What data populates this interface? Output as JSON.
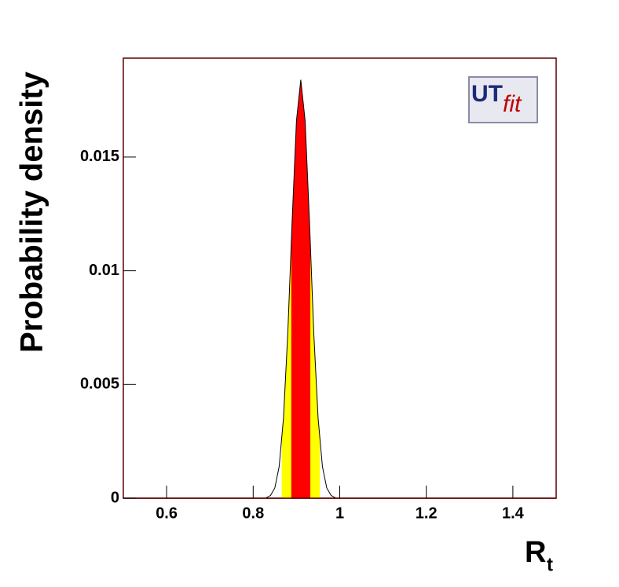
{
  "chart_data": {
    "type": "line",
    "ylabel": "Probability density",
    "xlabel": "R",
    "xlabel_subscript": "t",
    "logo": {
      "main": "UT",
      "sub": "fit"
    },
    "x": [
      0.83,
      0.84,
      0.85,
      0.86,
      0.87,
      0.88,
      0.89,
      0.9,
      0.91,
      0.92,
      0.93,
      0.94,
      0.95,
      0.96,
      0.97,
      0.98,
      0.99
    ],
    "series": [
      {
        "color": "#000000",
        "values": [
          2e-05,
          0.00012,
          0.00045,
          0.00139,
          0.00352,
          0.00726,
          0.0122,
          0.0166,
          0.0184,
          0.0166,
          0.0122,
          0.00726,
          0.00352,
          0.00139,
          0.00045,
          0.00012,
          2e-05
        ]
      }
    ],
    "bands": [
      {
        "range": [
          0.866,
          0.954
        ],
        "color": "#ffff00"
      },
      {
        "range": [
          0.888,
          0.932
        ],
        "color": "#ff0000"
      }
    ],
    "xlim": [
      0.5,
      1.5
    ],
    "xticks": [
      0.6,
      0.8,
      1,
      1.2,
      1.4
    ],
    "ylim": [
      0,
      0.01935
    ],
    "yticks": [
      0,
      0.005,
      0.01,
      0.015
    ]
  }
}
